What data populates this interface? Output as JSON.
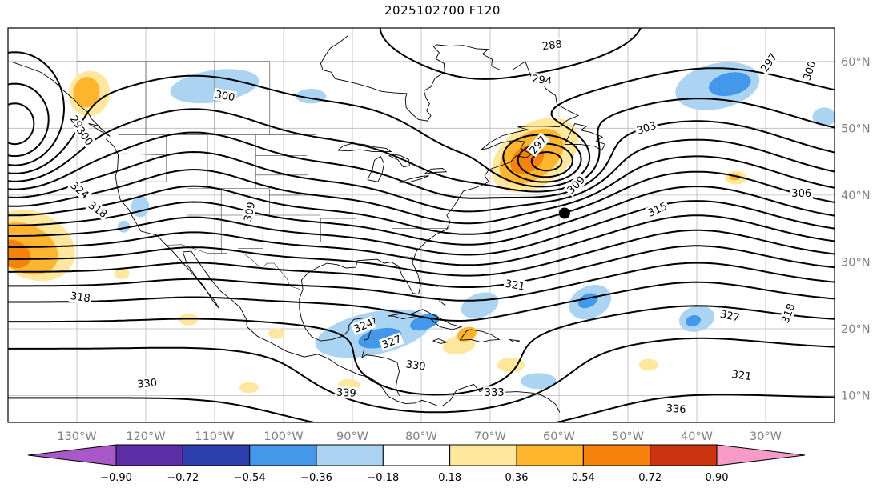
{
  "title": "2025102700 F120",
  "chart_data": {
    "type": "contour",
    "title": "2025102700 F120",
    "projection": {
      "lon_min": -140,
      "lon_max": -20,
      "lat_min": 6,
      "lat_max": 65
    },
    "grid_on": true,
    "x_tick_labels": [
      "130°W",
      "120°W",
      "110°W",
      "100°W",
      "90°W",
      "80°W",
      "70°W",
      "60°W",
      "50°W",
      "40°W",
      "30°W"
    ],
    "x_tick_lons": [
      -130,
      -120,
      -110,
      -100,
      -90,
      -80,
      -70,
      -60,
      -50,
      -40,
      -30
    ],
    "y_tick_labels": [
      "10°N",
      "20°N",
      "30°N",
      "40°N",
      "50°N",
      "60°N"
    ],
    "y_tick_lats": [
      10,
      20,
      30,
      40,
      50,
      60
    ],
    "tick_label_color": "#808080",
    "contours": {
      "levels_start": 279,
      "levels_end": 342,
      "interval": 3,
      "color": "#000000"
    },
    "contour_labels": [
      {
        "text": "288",
        "lon": -61.0,
        "lat": 62.4,
        "rot": -8
      },
      {
        "text": "294",
        "lon": -62.5,
        "lat": 57.2,
        "rot": 8
      },
      {
        "text": "297",
        "lon": -29.5,
        "lat": 59.8,
        "rot": -55
      },
      {
        "text": "300",
        "lon": -23.6,
        "lat": 58.6,
        "rot": -72
      },
      {
        "text": "303",
        "lon": -47.3,
        "lat": 50.0,
        "rot": -18
      },
      {
        "text": "306",
        "lon": -24.8,
        "lat": 40.2,
        "rot": 0
      },
      {
        "text": "315",
        "lon": -45.7,
        "lat": 37.8,
        "rot": -25
      },
      {
        "text": "309",
        "lon": -104.9,
        "lat": 37.5,
        "rot": -78
      },
      {
        "text": "300",
        "lon": -108.5,
        "lat": 54.8,
        "rot": 10
      },
      {
        "text": "297",
        "lon": -129.8,
        "lat": 50.5,
        "rot": 55
      },
      {
        "text": "300",
        "lon": -128.9,
        "lat": 48.8,
        "rot": 55
      },
      {
        "text": "324",
        "lon": -129.6,
        "lat": 40.7,
        "rot": 40
      },
      {
        "text": "318",
        "lon": -127.0,
        "lat": 37.8,
        "rot": 35
      },
      {
        "text": "318",
        "lon": -129.5,
        "lat": 24.7,
        "rot": 8
      },
      {
        "text": "330",
        "lon": -119.8,
        "lat": 11.8,
        "rot": -5
      },
      {
        "text": "339",
        "lon": -90.9,
        "lat": 10.4,
        "rot": 3
      },
      {
        "text": "330",
        "lon": -80.8,
        "lat": 14.5,
        "rot": 8
      },
      {
        "text": "333",
        "lon": -69.4,
        "lat": 10.4,
        "rot": 0
      },
      {
        "text": "336",
        "lon": -43.0,
        "lat": 8.0,
        "rot": 4
      },
      {
        "text": "321",
        "lon": -33.5,
        "lat": 13.0,
        "rot": 8
      },
      {
        "text": "327",
        "lon": -35.2,
        "lat": 21.9,
        "rot": 12
      },
      {
        "text": "318",
        "lon": -26.7,
        "lat": 22.3,
        "rot": -70
      },
      {
        "text": "324",
        "lon": -88.4,
        "lat": 20.4,
        "rot": -22
      },
      {
        "text": "327",
        "lon": -84.3,
        "lat": 18.0,
        "rot": -20
      },
      {
        "text": "321",
        "lon": -66.4,
        "lat": 26.5,
        "rot": 10
      },
      {
        "text": "297",
        "lon": -63.0,
        "lat": 47.5,
        "rot": -50
      },
      {
        "text": "309",
        "lon": -57.5,
        "lat": 41.5,
        "rot": -45
      }
    ],
    "marker": {
      "lon": -59.2,
      "lat": 37.3,
      "color": "#000000"
    },
    "shading_palette": {
      "m2": "#4498ea",
      "m1": "#aad4f2",
      "p1": "#ffe79e",
      "p2": "#ffb62e",
      "p3": "#f5820d"
    },
    "shading_bins": {
      "m2": "-0.54 to -0.36",
      "m1": "-0.36 to -0.18",
      "p1": "0.18 to 0.36",
      "p2": "0.36 to 0.54",
      "p3": "0.54 to 0.72"
    },
    "shaded_regions": [
      {
        "bin": "m1",
        "lon": -110,
        "lat": 56.3,
        "rx": 6.5,
        "ry": 2.4,
        "rot": -8
      },
      {
        "bin": "m1",
        "lon": -96,
        "lat": 54.8,
        "rx": 2.2,
        "ry": 1.1,
        "rot": 0
      },
      {
        "bin": "p1",
        "lon": -128.2,
        "lat": 55.2,
        "rx": 3.0,
        "ry": 3.4,
        "rot": 10
      },
      {
        "bin": "p2",
        "lon": -128.6,
        "lat": 55.4,
        "rx": 1.9,
        "ry": 2.3,
        "rot": 10
      },
      {
        "bin": "m1",
        "lon": -37,
        "lat": 56.3,
        "rx": 6.2,
        "ry": 3.4,
        "rot": -12
      },
      {
        "bin": "m2",
        "lon": -35.2,
        "lat": 56.6,
        "rx": 3.1,
        "ry": 1.7,
        "rot": -12
      },
      {
        "bin": "m1",
        "lon": -21.5,
        "lat": 51.7,
        "rx": 1.7,
        "ry": 1.4,
        "rot": 0
      },
      {
        "bin": "p1",
        "lon": -136.5,
        "lat": 32.5,
        "rx": 6.5,
        "ry": 5.0,
        "rot": 25
      },
      {
        "bin": "p2",
        "lon": -137.5,
        "lat": 32.0,
        "rx": 5.0,
        "ry": 3.6,
        "rot": 25
      },
      {
        "bin": "p3",
        "lon": -139.2,
        "lat": 31.2,
        "rx": 2.6,
        "ry": 2.0,
        "rot": 25
      },
      {
        "bin": "m1",
        "lon": -120.8,
        "lat": 38.3,
        "rx": 1.3,
        "ry": 1.6,
        "rot": 0
      },
      {
        "bin": "m1",
        "lon": -123.2,
        "lat": 35.3,
        "rx": 0.9,
        "ry": 0.9,
        "rot": 0
      },
      {
        "bin": "p1",
        "lon": -123.5,
        "lat": 28.3,
        "rx": 1.1,
        "ry": 0.9,
        "rot": 0
      },
      {
        "bin": "p1",
        "lon": -63.5,
        "lat": 46.0,
        "rx": 7.0,
        "ry": 4.6,
        "rot": -35
      },
      {
        "bin": "p2",
        "lon": -64.0,
        "lat": 45.8,
        "rx": 5.2,
        "ry": 3.4,
        "rot": -35
      },
      {
        "bin": "p3",
        "lon": -64.6,
        "lat": 45.4,
        "rx": 2.7,
        "ry": 1.9,
        "rot": -35
      },
      {
        "bin": "p1",
        "lon": -34.3,
        "lat": 42.6,
        "rx": 1.6,
        "ry": 1.0,
        "rot": 0
      },
      {
        "bin": "p2",
        "lon": -34.5,
        "lat": 42.7,
        "rx": 0.8,
        "ry": 0.5,
        "rot": 0
      },
      {
        "bin": "m1",
        "lon": -87,
        "lat": 19.3,
        "rx": 8.5,
        "ry": 3.2,
        "rot": -12
      },
      {
        "bin": "m2",
        "lon": -86,
        "lat": 18.6,
        "rx": 3.2,
        "ry": 1.4,
        "rot": -12
      },
      {
        "bin": "m2",
        "lon": -79.5,
        "lat": 21.0,
        "rx": 2.2,
        "ry": 1.1,
        "rot": -18
      },
      {
        "bin": "m1",
        "lon": -71.5,
        "lat": 23.5,
        "rx": 2.8,
        "ry": 1.8,
        "rot": -20
      },
      {
        "bin": "m1",
        "lon": -55.5,
        "lat": 24.0,
        "rx": 3.2,
        "ry": 2.4,
        "rot": -25
      },
      {
        "bin": "m2",
        "lon": -55.8,
        "lat": 24.2,
        "rx": 1.5,
        "ry": 1.0,
        "rot": -25
      },
      {
        "bin": "m1",
        "lon": -40,
        "lat": 21.5,
        "rx": 2.6,
        "ry": 1.9,
        "rot": -15
      },
      {
        "bin": "m2",
        "lon": -40.5,
        "lat": 21.2,
        "rx": 1.1,
        "ry": 0.8,
        "rot": -15
      },
      {
        "bin": "m1",
        "lon": -63,
        "lat": 12.2,
        "rx": 2.6,
        "ry": 1.2,
        "rot": 0
      },
      {
        "bin": "p1",
        "lon": -74.5,
        "lat": 17.6,
        "rx": 2.4,
        "ry": 1.4,
        "rot": -10
      },
      {
        "bin": "p2",
        "lon": -73.4,
        "lat": 19.2,
        "rx": 1.5,
        "ry": 1.0,
        "rot": -20
      },
      {
        "bin": "p1",
        "lon": -67,
        "lat": 14.6,
        "rx": 2.0,
        "ry": 1.1,
        "rot": 0
      },
      {
        "bin": "p1",
        "lon": -47,
        "lat": 14.6,
        "rx": 1.4,
        "ry": 0.9,
        "rot": 0
      },
      {
        "bin": "p1",
        "lon": -90.5,
        "lat": 11.6,
        "rx": 1.6,
        "ry": 0.9,
        "rot": 0
      },
      {
        "bin": "p1",
        "lon": -101,
        "lat": 19.3,
        "rx": 1.2,
        "ry": 0.8,
        "rot": 0
      },
      {
        "bin": "p1",
        "lon": -113.8,
        "lat": 21.4,
        "rx": 1.4,
        "ry": 0.9,
        "rot": 0
      },
      {
        "bin": "p1",
        "lon": -105,
        "lat": 11.2,
        "rx": 1.4,
        "ry": 0.8,
        "rot": 0
      }
    ],
    "colorbar": {
      "tick_labels": [
        "−0.90",
        "−0.72",
        "−0.54",
        "−0.36",
        "−0.18",
        "0.18",
        "0.36",
        "0.54",
        "0.72",
        "0.90"
      ],
      "tick_values": [
        -0.9,
        -0.72,
        -0.54,
        -0.36,
        -0.18,
        0.18,
        0.36,
        0.54,
        0.72,
        0.9
      ],
      "segment_colors": [
        "#5b2ea6",
        "#2d3fae",
        "#4498ea",
        "#aad4f2",
        "#ffffff",
        "#ffe79e",
        "#ffb62e",
        "#f5820d",
        "#cc3311"
      ],
      "extend_left_color": "#a958c8",
      "extend_right_color": "#f79ac5",
      "outline_color": "#000000"
    }
  }
}
